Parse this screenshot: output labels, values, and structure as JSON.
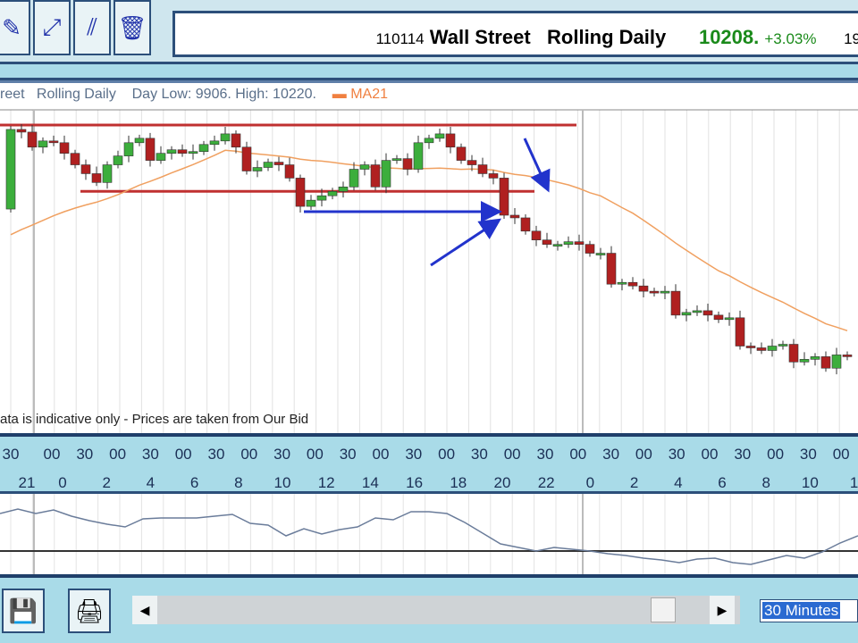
{
  "toolbar": {
    "buttons": [
      {
        "icon": "chart-edit-icon",
        "glyph": "✎"
      },
      {
        "icon": "draw-trendline-icon",
        "glyph": "⤢"
      },
      {
        "icon": "draw-parallel-lines-icon",
        "glyph": "⫽"
      },
      {
        "icon": "trash-icon",
        "glyph": "🗑"
      }
    ]
  },
  "title": {
    "code": "110114",
    "instrument": "Wall Street",
    "period": "Rolling Daily",
    "price": "10208.",
    "change": "+3.03%",
    "extra": "19",
    "price_color": "#1a8a1a"
  },
  "chart_header": {
    "instrument": "reet",
    "period": "Rolling Daily",
    "day_range": "Day Low: 9906. High: 10220.",
    "ma_label": "MA21",
    "ma_color": "#f0a060"
  },
  "disclaimer": "ata is indicative only - Prices are taken from Our Bid",
  "time_axis": {
    "minutes": [
      "30",
      "00",
      "30",
      "00",
      "30",
      "00",
      "30",
      "00",
      "30",
      "00",
      "30",
      "00",
      "30",
      "00",
      "30",
      "00",
      "30",
      "00",
      "30",
      "00",
      "30",
      "00",
      "30",
      "00",
      "30",
      "00"
    ],
    "hours": [
      "21",
      "0",
      "2",
      "4",
      "6",
      "8",
      "10",
      "12",
      "14",
      "16",
      "18",
      "20",
      "22",
      "0",
      "2",
      "4",
      "6",
      "8",
      "10",
      "1"
    ]
  },
  "bottom": {
    "save_icon": "floppy-disk-icon",
    "print_icon": "printer-icon",
    "interval": "30 Minutes"
  },
  "chart_data": {
    "type": "candlestick",
    "day_low": 9906,
    "day_high": 10220,
    "ma_period": 21,
    "up_color": "#3cae3c",
    "down_color": "#b02020",
    "first_open": 10125,
    "closes": [
      10215,
      10212,
      10195,
      10202,
      10200,
      10188,
      10175,
      10165,
      10155,
      10175,
      10185,
      10200,
      10205,
      10180,
      10188,
      10192,
      10188,
      10190,
      10198,
      10202,
      10210,
      10195,
      10168,
      10172,
      10178,
      10175,
      10160,
      10128,
      10135,
      10140,
      10145,
      10150,
      10170,
      10175,
      10150,
      10180,
      10182,
      10170,
      10200,
      10205,
      10210,
      10195,
      10180,
      10175,
      10165,
      10160,
      10118,
      10115,
      10100,
      10090,
      10085,
      10085,
      10088,
      10085,
      10075,
      10075,
      10040,
      10042,
      10038,
      10032,
      10030,
      10032,
      10005,
      10008,
      10010,
      10005,
      10000,
      10002,
      9970,
      9968,
      9965,
      9970,
      9972,
      9952,
      9955,
      9958,
      9945,
      9960,
      9958
    ],
    "resistance": 10220,
    "support": 10145,
    "indicator_values": [
      65,
      70,
      65,
      69,
      62,
      57,
      53,
      50,
      59,
      60,
      60,
      60,
      62,
      64,
      54,
      52,
      40,
      48,
      42,
      47,
      50,
      60,
      58,
      67,
      67,
      65,
      55,
      43,
      31,
      27,
      23,
      27,
      25,
      23,
      20,
      18,
      15,
      13,
      10,
      14,
      15,
      10,
      8,
      13,
      18,
      15,
      22,
      32,
      40
    ]
  }
}
